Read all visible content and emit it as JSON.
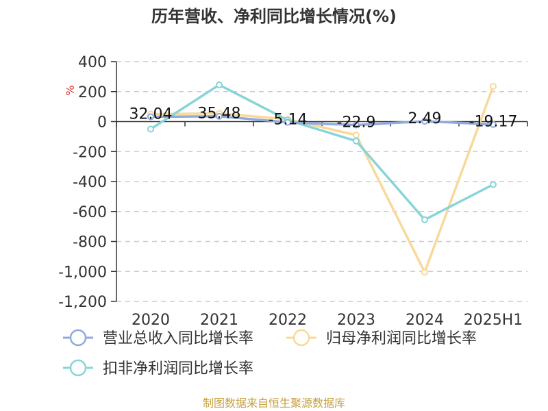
{
  "chart_data": {
    "type": "line",
    "title": "历年营收、净利同比增长情况(%)",
    "unit_label": "%",
    "categories": [
      "2020",
      "2021",
      "2022",
      "2023",
      "2024",
      "2025H1"
    ],
    "ylim": [
      -1200,
      400
    ],
    "yticks": [
      400,
      200,
      0,
      -200,
      -400,
      -600,
      -800,
      -1000,
      -1200
    ],
    "ytick_labels": [
      "400",
      "200",
      "0",
      "-200",
      "-400",
      "-600",
      "-800",
      "-1,000",
      "-1,200"
    ],
    "grid": true,
    "legend_position": "bottom",
    "series": [
      {
        "name": "营业总收入同比增长率",
        "color": "#8faadc",
        "values": [
          32.04,
          35.48,
          -5.14,
          -22.9,
          2.49,
          -19.17
        ],
        "data_labels": [
          "32.04",
          "35.48",
          "-5.14",
          "-22.9",
          "2.49",
          "-19.17"
        ]
      },
      {
        "name": "归母净利润同比增长率",
        "color": "#f8d99a",
        "values": [
          50,
          55,
          15,
          -90,
          -1005,
          235
        ]
      },
      {
        "name": "扣非净利润同比增长率",
        "color": "#88d4d8",
        "values": [
          -50,
          245,
          10,
          -130,
          -655,
          -420
        ]
      }
    ]
  },
  "source_text": "制图数据来自恒生聚源数据库"
}
